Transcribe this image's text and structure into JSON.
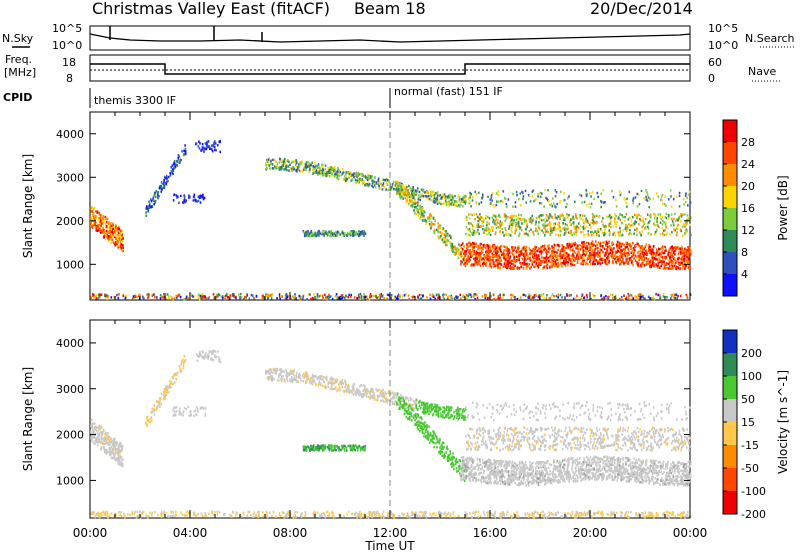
{
  "header": {
    "title": "Christmas Valley East (fitACF)",
    "beam": "Beam 18",
    "date": "20/Dec/2014"
  },
  "sky_panel": {
    "left_label": "N.Sky",
    "right_label": "N.Search",
    "tick_top": "10^5",
    "tick_bottom": "10^0"
  },
  "freq_panel": {
    "left_label_1": "Freq.",
    "left_label_2": "[MHz]",
    "ticks_left": [
      "18",
      "8"
    ],
    "right_label": "Nave",
    "ticks_right": [
      "60",
      "0"
    ]
  },
  "cpid": {
    "label": "CPID",
    "modes": [
      {
        "name": "themis 3300 IF",
        "start_hour": 0
      },
      {
        "name": "normal (fast) 151 IF",
        "start_hour": 12
      }
    ]
  },
  "chart_data": [
    {
      "type": "heatmap",
      "name": "Power",
      "ylabel": "Slant Range [km]",
      "xlabel": "Time UT",
      "ylim": [
        180,
        4500
      ],
      "xlim": [
        0,
        24
      ],
      "x_ticks": [
        "00:00",
        "04:00",
        "08:00",
        "12:00",
        "16:00",
        "20:00",
        "00:00"
      ],
      "y_ticks": [
        1000,
        2000,
        3000,
        4000
      ],
      "colorbar": {
        "label": "Power [dB]",
        "ticks": [
          "28",
          "24",
          "20",
          "16",
          "12",
          "8",
          "4"
        ],
        "colors": [
          "#f00000",
          "#ff4500",
          "#ff8c00",
          "#ffd400",
          "#7ccd3c",
          "#2e8b57",
          "#3050c0",
          "#1010ff"
        ]
      },
      "features": [
        {
          "band": "2200->1500 km",
          "hours": [
            0,
            1.3
          ],
          "power_db": 24
        },
        {
          "band": "1200 km",
          "hours": [
            15,
            24
          ],
          "power_db": 28
        },
        {
          "band": "3000 km arc",
          "hours": [
            7,
            15
          ],
          "power_db": 10
        },
        {
          "band": "1700 km",
          "hours": [
            8.5,
            11
          ],
          "power_db": 12
        }
      ]
    },
    {
      "type": "heatmap",
      "name": "Velocity",
      "ylabel": "Slant Range [km]",
      "xlabel": "Time UT",
      "ylim": [
        180,
        4500
      ],
      "xlim": [
        0,
        24
      ],
      "x_ticks": [
        "00:00",
        "04:00",
        "08:00",
        "12:00",
        "16:00",
        "20:00",
        "00:00"
      ],
      "y_ticks": [
        1000,
        2000,
        3000,
        4000
      ],
      "colorbar": {
        "label": "Velocity [m s^-1]",
        "ticks": [
          "200",
          "100",
          "50",
          "15",
          "-15",
          "-50",
          "-100",
          "-200"
        ],
        "colors": [
          "#1030c0",
          "#2e8b57",
          "#49c832",
          "#c8c8c8",
          "#ffc84b",
          "#ff8c00",
          "#ff4500",
          "#f00000"
        ]
      }
    }
  ]
}
